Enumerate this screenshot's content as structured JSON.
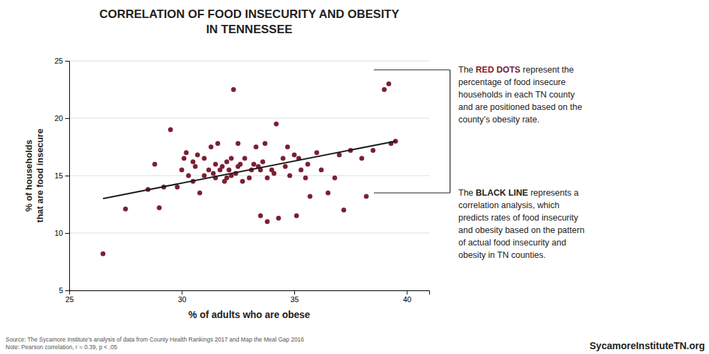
{
  "chart_data": {
    "type": "scatter",
    "title": "CORRELATION OF FOOD INSECURITY AND OBESITY\nIN TENNESSEE",
    "xlabel": "% of adults who are obese",
    "ylabel": "% of households\nthat are food insecure",
    "xlim": [
      25,
      41
    ],
    "ylim": [
      5,
      25
    ],
    "xticks": [
      25,
      30,
      35,
      40
    ],
    "yticks": [
      5,
      10,
      15,
      20,
      25
    ],
    "grid": "y",
    "series": [
      {
        "type": "scatter",
        "color": "#7B2033",
        "x": [
          26.5,
          27.5,
          28.5,
          28.8,
          29.0,
          29.2,
          29.5,
          29.8,
          30.0,
          30.1,
          30.2,
          30.3,
          30.5,
          30.5,
          30.6,
          30.7,
          30.8,
          31.0,
          31.0,
          31.2,
          31.3,
          31.4,
          31.5,
          31.5,
          31.6,
          31.7,
          31.8,
          31.9,
          32.0,
          32.0,
          32.1,
          32.2,
          32.2,
          32.3,
          32.4,
          32.5,
          32.5,
          32.6,
          32.7,
          32.8,
          33.0,
          33.1,
          33.2,
          33.3,
          33.4,
          33.5,
          33.5,
          33.6,
          33.7,
          33.8,
          33.8,
          34.0,
          34.1,
          34.2,
          34.3,
          34.5,
          34.6,
          34.7,
          34.8,
          35.0,
          35.1,
          35.2,
          35.3,
          35.5,
          35.6,
          35.7,
          36.0,
          36.2,
          36.5,
          36.8,
          37.0,
          37.2,
          37.5,
          38.0,
          38.2,
          38.5,
          39.0,
          39.2,
          39.3,
          39.5
        ],
        "values": [
          8.2,
          12.1,
          13.8,
          16.0,
          12.2,
          14.0,
          19.0,
          14.0,
          15.5,
          16.5,
          17.0,
          15.0,
          16.2,
          14.5,
          15.8,
          16.8,
          13.5,
          15.0,
          16.5,
          15.5,
          17.5,
          15.2,
          16.0,
          14.8,
          17.8,
          15.5,
          15.8,
          14.5,
          14.8,
          16.2,
          15.5,
          16.5,
          15.0,
          22.5,
          15.2,
          15.8,
          17.8,
          16.0,
          14.5,
          16.5,
          14.8,
          15.5,
          16.0,
          17.5,
          15.8,
          11.5,
          15.5,
          16.2,
          17.8,
          14.8,
          11.0,
          15.5,
          15.2,
          19.5,
          11.3,
          16.5,
          15.8,
          17.5,
          15.0,
          16.8,
          11.5,
          16.5,
          15.5,
          14.8,
          16.0,
          13.2,
          17.0,
          15.5,
          13.5,
          14.8,
          16.8,
          12.0,
          17.2,
          16.5,
          13.2,
          17.2,
          22.5,
          23.0,
          17.8,
          18.0
        ]
      },
      {
        "type": "line",
        "color": "#1a1a1a",
        "x": [
          26.5,
          39.5
        ],
        "values": [
          13.0,
          18.0
        ]
      }
    ],
    "annotations": [
      {
        "lead": "The ",
        "highlight": "RED DOTS",
        "color": "#7B2033",
        "text": " represent the\npercentage of food insecure\nhouseholds in each TN county\nand are positioned based on the\ncounty’s obesity rate."
      },
      {
        "lead": "The ",
        "highlight": "BLACK LINE",
        "text": " represents a\ncorrelation analysis, which\npredicts rates of food insecurity\nand obesity based on the pattern\nof actual food insecurity and\nobesity in TN counties."
      }
    ],
    "source": "Source: The Sycamore Institute’s analysis of data from County Health Rankings 2017 and Map the Meal Gap 2016\nNote: Pearson correlation, r = 0.39, p < .05",
    "watermark": "SycamoreInstituteTN.org"
  }
}
